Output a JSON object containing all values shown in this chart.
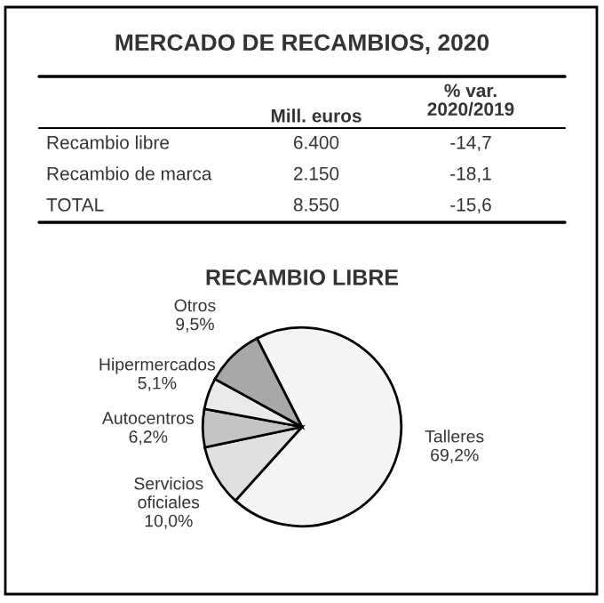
{
  "chart_data": [
    {
      "type": "other",
      "title": "MERCADO DE RECAMBIOS, 2020",
      "annotations": [
        "Mill. euros",
        "% var.\n2020/2019",
        "Recambio libre",
        "6.400",
        "-14,7",
        "Recambio de marca",
        "2.150",
        "-18,1",
        "TOTAL",
        "8.550",
        "-15,6"
      ]
    },
    {
      "type": "pie",
      "title": "RECAMBIO LIBRE",
      "categories": [
        "Talleres",
        "Servicios\noficiales",
        "Autocentros",
        "Hipermercados",
        "Otros"
      ],
      "values": [
        69.2,
        10.0,
        6.2,
        5.1,
        9.5
      ],
      "value_labels": [
        "69,2%",
        "10,0%",
        "6,2%",
        "5,1%",
        "9,5%"
      ],
      "colors": [
        "#f4f4f4",
        "#e0e0e0",
        "#c4c4c4",
        "#eaeaea",
        "#a8a8a8"
      ]
    }
  ]
}
